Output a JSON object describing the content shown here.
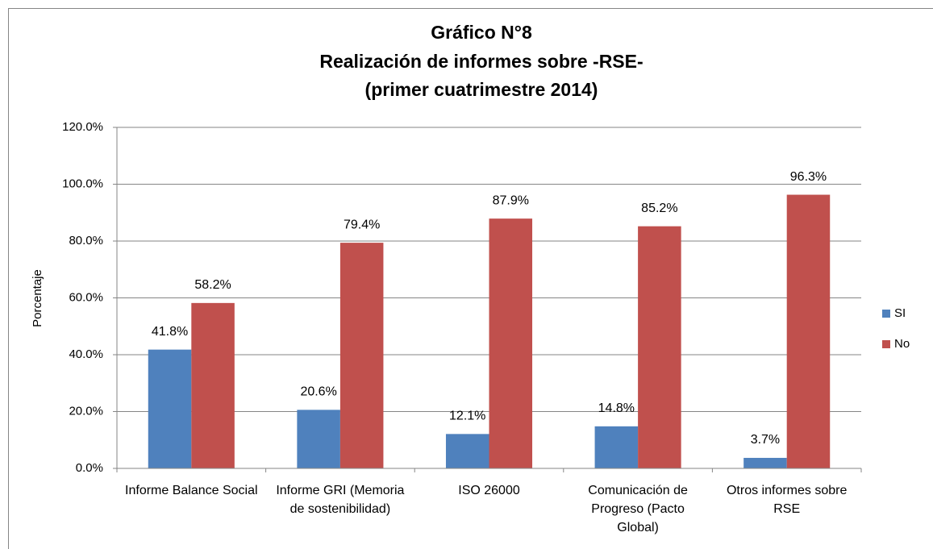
{
  "chart_data": {
    "type": "bar",
    "title": "Gráfico N°8",
    "subtitle": [
      "Realización de informes sobre -RSE-",
      "(primer cuatrimestre 2014)"
    ],
    "y_label": "Porcentaje",
    "categories": [
      "Informe Balance Social",
      "Informe GRI (Memoria de sostenibilidad)",
      "ISO 26000",
      "Comunicación de Progreso (Pacto Global)",
      "Otros informes sobre RSE"
    ],
    "series": [
      {
        "name": "SI",
        "color": "#4f81bd",
        "values": [
          41.8,
          20.6,
          12.1,
          14.8,
          3.7
        ],
        "value_labels": [
          "41.8%",
          "20.6%",
          "12.1%",
          "14.8%",
          "3.7%"
        ]
      },
      {
        "name": "No",
        "color": "#c0504d",
        "values": [
          58.2,
          79.4,
          87.9,
          85.2,
          96.3
        ],
        "value_labels": [
          "58.2%",
          "79.4%",
          "87.9%",
          "85.2%",
          "96.3%"
        ]
      }
    ],
    "ylim": [
      0,
      120
    ],
    "yticks": [
      {
        "value": 0,
        "label": "0.0%"
      },
      {
        "value": 20,
        "label": "20.0%"
      },
      {
        "value": 40,
        "label": "40.0%"
      },
      {
        "value": 60,
        "label": "60.0%"
      },
      {
        "value": 80,
        "label": "80.0%"
      },
      {
        "value": 100,
        "label": "100.0%"
      },
      {
        "value": 120,
        "label": "120.0%"
      }
    ],
    "grid": true,
    "legend": "right"
  }
}
